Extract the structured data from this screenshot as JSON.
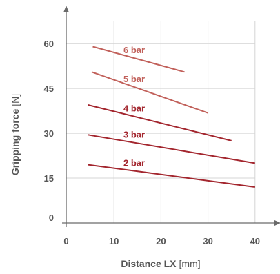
{
  "chart_data": {
    "type": "line",
    "x_axis": {
      "label_bold": "Distance LX",
      "label_unit": "[mm]",
      "ticks": [
        0,
        10,
        20,
        30,
        40
      ],
      "range": [
        0,
        40
      ]
    },
    "y_axis": {
      "label_bold": "Gripping force",
      "label_unit": "[N]",
      "ticks": [
        0,
        15,
        30,
        45,
        60
      ],
      "range": [
        0,
        60
      ]
    },
    "grid": true,
    "series": [
      {
        "name": "2 bar",
        "color": "#a3262e",
        "x": [
          4.5,
          40
        ],
        "y": [
          19.5,
          12
        ]
      },
      {
        "name": "3 bar",
        "color": "#a3262e",
        "x": [
          4.5,
          40
        ],
        "y": [
          29.5,
          20
        ]
      },
      {
        "name": "4 bar",
        "color": "#a3262e",
        "x": [
          4.5,
          35
        ],
        "y": [
          39.5,
          27.5
        ]
      },
      {
        "name": "5 bar",
        "color": "#c1605a",
        "x": [
          5.3,
          30
        ],
        "y": [
          50.5,
          36.8
        ]
      },
      {
        "name": "6 bar",
        "color": "#c1605a",
        "x": [
          5.5,
          25
        ],
        "y": [
          59,
          50.5
        ]
      }
    ]
  }
}
